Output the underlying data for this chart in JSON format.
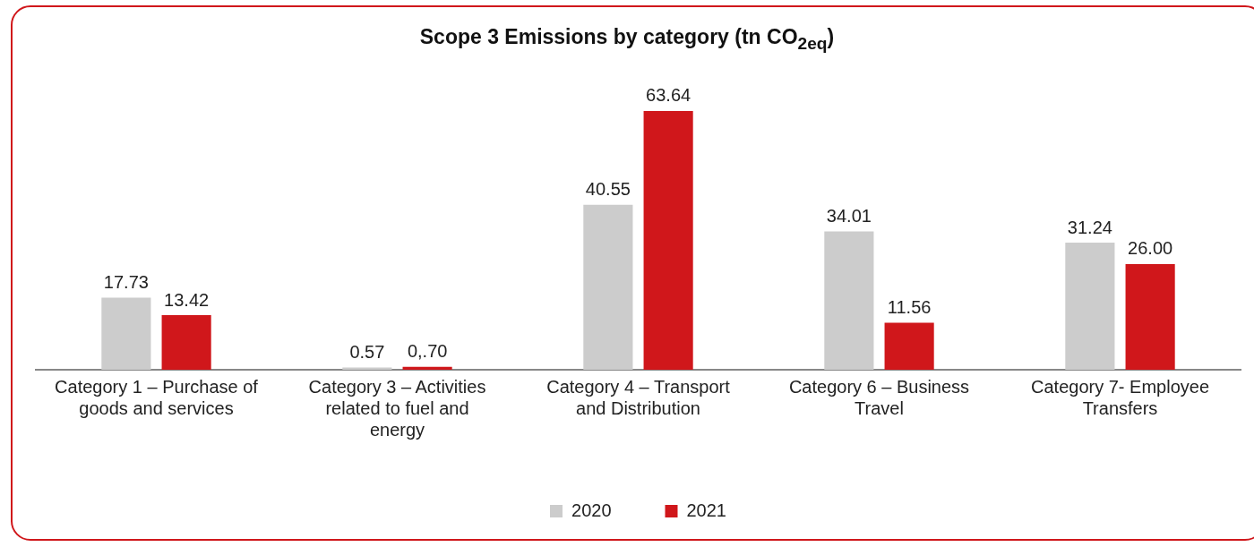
{
  "chart_data": {
    "type": "bar",
    "title": "Scope 3 Emissions by category  (tn CO$_{2eq}$)",
    "categories": [
      "Category 1 – Purchase of goods and services",
      "Category 3 – Activities related to fuel and energy",
      "Category 4 – Transport and Distribution",
      "Category 6 – Business Travel",
      "Category 7- Employee Transfers"
    ],
    "series": [
      {
        "name": "2020",
        "color": "#cccccc",
        "values": [
          17.73,
          0.57,
          40.55,
          34.01,
          31.24
        ],
        "value_labels": [
          "17.73",
          "0.57",
          "40.55",
          "34.01",
          "31.24"
        ]
      },
      {
        "name": "2021",
        "color": "#d0171b",
        "values": [
          13.42,
          0.7,
          63.64,
          11.56,
          26.0
        ],
        "value_labels": [
          "13.42",
          "0,.70",
          "63.64",
          "11.56",
          "26.00"
        ]
      }
    ],
    "legend": "bottom",
    "grid": false
  }
}
